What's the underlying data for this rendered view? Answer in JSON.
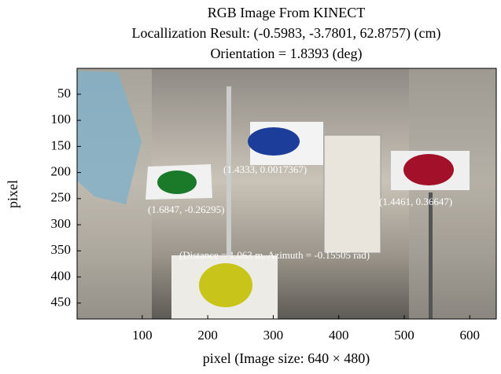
{
  "chart_data": {
    "type": "image",
    "title": [
      "RGB Image From KINECT",
      "Locallization Result: (-0.5983, -3.7801, 62.8757) (cm)",
      "Orientation = 1.8393 (deg)"
    ],
    "xlabel": "pixel (Image size: 640 × 480)",
    "ylabel": "pixel",
    "xlim": [
      0.5,
      640.5
    ],
    "ylim": [
      480.5,
      0.5
    ],
    "xticks": [
      100,
      200,
      300,
      400,
      500,
      600
    ],
    "yticks": [
      50,
      100,
      150,
      200,
      250,
      300,
      350,
      400,
      450
    ],
    "annotations": [
      "(1.4333, 0.0017367)",
      "(1.6847, -0.26295)",
      "(1.4461, 0.36647)",
      "(Distance = 1.063 m, Azimuth = -0.15505 rad)"
    ]
  }
}
